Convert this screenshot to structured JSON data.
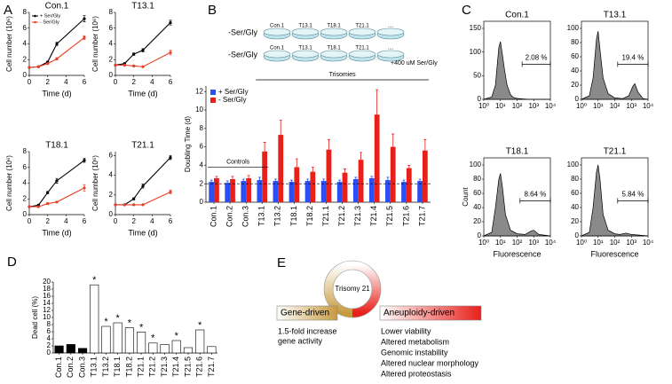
{
  "panel_labels": [
    "A",
    "B",
    "C",
    "D",
    "E"
  ],
  "schematic": {
    "rows": [
      "-Ser/Gly",
      "-Ser/Gly"
    ],
    "dishes": [
      "Con.1",
      "T13.1",
      "T18.1",
      "T21.1",
      "...."
    ],
    "note": "+400 uM Ser/Gly"
  },
  "diagram": {
    "center": "Trisomy 21",
    "left": {
      "title": "Gene-driven",
      "items": [
        "1.5-fold increase",
        "gene activity"
      ]
    },
    "right": {
      "title": "Aneuploidy-driven",
      "items": [
        "Lower viability",
        "Altered metabolism",
        "Genomic instability",
        "Altered nuclear morphology",
        "Altered proteostasis"
      ]
    }
  },
  "chart_data": [
    {
      "type": "line",
      "title": "Con.1",
      "x": [
        0,
        1,
        2,
        3,
        6
      ],
      "xlim": [
        0,
        6
      ],
      "xticks": [
        0,
        2,
        4,
        6
      ],
      "ylim": [
        0,
        8
      ],
      "yticks": [
        0,
        2,
        4,
        6,
        8
      ],
      "x_label": "Time (d)",
      "y_label": "Cell number (10⁶)",
      "legend": "upper left",
      "series": [
        {
          "name": "+ Ser/Gly",
          "color": "#000000",
          "values": [
            1,
            1.1,
            1.7,
            4.0,
            7.2
          ],
          "errors": [
            0.05,
            0.05,
            0.1,
            0.2,
            0.4
          ]
        },
        {
          "name": "- Ser/Gly",
          "color": "#e8402a",
          "values": [
            1,
            1.1,
            1.5,
            2.1,
            4.8
          ],
          "errors": [
            0.05,
            0.05,
            0.1,
            0.15,
            0.25
          ]
        }
      ]
    },
    {
      "type": "line",
      "title": "T13.1",
      "x": [
        0,
        1,
        2,
        3,
        6
      ],
      "xlim": [
        0,
        6
      ],
      "xticks": [
        0,
        2,
        4,
        6
      ],
      "ylim": [
        0,
        8
      ],
      "yticks": [
        0,
        2,
        4,
        6,
        8
      ],
      "x_label": "Time (d)",
      "y_label": "Cell number (10⁶)",
      "series": [
        {
          "name": "+ Ser/Gly",
          "color": "#000000",
          "values": [
            1.3,
            1.5,
            2.7,
            3.2,
            6.7
          ],
          "errors": [
            0.05,
            0.1,
            0.15,
            0.2,
            0.3
          ]
        },
        {
          "name": "- Ser/Gly",
          "color": "#e8402a",
          "values": [
            1.3,
            1.3,
            1.2,
            1.1,
            2.9
          ],
          "errors": [
            0.05,
            0.05,
            0.1,
            0.1,
            0.3
          ]
        }
      ]
    },
    {
      "type": "line",
      "title": "T18.1",
      "x": [
        0,
        1,
        2,
        3,
        6
      ],
      "xlim": [
        0,
        6
      ],
      "xticks": [
        0,
        2,
        4,
        6
      ],
      "ylim": [
        0,
        8
      ],
      "yticks": [
        0,
        2,
        4,
        6,
        8
      ],
      "x_label": "Time (d)",
      "y_label": "Cell number (10⁶)",
      "series": [
        {
          "name": "+ Ser/Gly",
          "color": "#000000",
          "values": [
            1.0,
            1.2,
            2.8,
            4.3,
            6.9
          ],
          "errors": [
            0.05,
            0.1,
            0.15,
            0.3,
            0.25
          ]
        },
        {
          "name": "- Ser/Gly",
          "color": "#e8402a",
          "values": [
            1.0,
            1.0,
            1.4,
            1.6,
            3.4
          ],
          "errors": [
            0.05,
            0.05,
            0.1,
            0.1,
            0.4
          ]
        }
      ]
    },
    {
      "type": "line",
      "title": "T21.1",
      "x": [
        0,
        1,
        2,
        3,
        6
      ],
      "xlim": [
        0,
        6
      ],
      "xticks": [
        0,
        2,
        4,
        6
      ],
      "ylim": [
        0,
        6.4
      ],
      "yticks": [
        0,
        2,
        4,
        6
      ],
      "x_label": "Time (d)",
      "y_label": "Cell number (10⁶)",
      "series": [
        {
          "name": "+ Ser/Gly",
          "color": "#000000",
          "values": [
            1.0,
            1.0,
            1.6,
            2.9,
            5.8
          ],
          "errors": [
            0.05,
            0.05,
            0.1,
            0.2,
            0.2
          ]
        },
        {
          "name": "- Ser/Gly",
          "color": "#e8402a",
          "values": [
            1.0,
            1.0,
            1.0,
            1.0,
            2.3
          ],
          "errors": [
            0.05,
            0.05,
            0.05,
            0.05,
            0.2
          ]
        }
      ]
    },
    {
      "type": "bar",
      "y_label": "Doubling Time (d)",
      "ylim": [
        0,
        12.6
      ],
      "yticks": [
        0,
        2,
        4,
        6,
        8,
        10,
        12
      ],
      "legend": "upper left",
      "reference_line": 2,
      "categories": [
        "Con.1",
        "Con.2",
        "Con.3",
        "T13.1",
        "T13.2",
        "T18.1",
        "T18.2",
        "T21.1",
        "T21.2",
        "T21.3",
        "T21.4",
        "T21.5",
        "T21.6",
        "T21.7"
      ],
      "series": [
        {
          "name": "+ Ser/Gly",
          "color": "#2b4ff0",
          "values": [
            2.2,
            2.1,
            2.3,
            2.4,
            2.3,
            2.2,
            2.3,
            2.3,
            2.2,
            2.5,
            2.6,
            2.4,
            2.2,
            2.3
          ],
          "errors": [
            0.2,
            0.2,
            0.2,
            0.3,
            0.2,
            0.2,
            0.2,
            0.2,
            0.2,
            0.2,
            0.2,
            0.3,
            0.2,
            0.2
          ]
        },
        {
          "name": "- Ser/Gly",
          "color": "#e8201a",
          "values": [
            2.6,
            2.5,
            2.6,
            5.5,
            7.3,
            3.8,
            3.3,
            5.7,
            3.2,
            4.6,
            9.5,
            6.0,
            3.7,
            5.6
          ],
          "errors": [
            0.2,
            0.3,
            0.3,
            1.0,
            1.6,
            0.9,
            0.5,
            1.1,
            0.4,
            0.8,
            2.7,
            1.4,
            0.3,
            1.2
          ]
        }
      ],
      "brackets": [
        {
          "label": "Controls",
          "from": 0,
          "to": 3
        },
        {
          "label": "Trisomies",
          "from": 3,
          "to": 13
        }
      ]
    },
    {
      "type": "area",
      "title": "Con.1",
      "color": "#8a8a8a",
      "log_x": true,
      "frame": true,
      "xlim": [
        1,
        10000
      ],
      "xticks": [
        {
          "value": 1,
          "label": "10⁰"
        },
        {
          "value": 10,
          "label": "10¹"
        },
        {
          "value": 100,
          "label": "10²"
        },
        {
          "value": 1000,
          "label": "10³"
        },
        {
          "value": 10000,
          "label": "10⁴"
        }
      ],
      "ylim": [
        0,
        165
      ],
      "yticks": [
        0,
        50,
        100,
        150
      ],
      "x": [
        1,
        3,
        5,
        8,
        10,
        13,
        18,
        25,
        40,
        60,
        100,
        200,
        500,
        1000,
        10000
      ],
      "values": [
        0,
        5,
        30,
        110,
        122,
        95,
        60,
        30,
        10,
        4,
        2,
        1,
        0,
        0,
        0
      ],
      "gate": [
        200,
        10000
      ],
      "gate_value": 2.08,
      "gate_label": "2.08 %"
    },
    {
      "type": "area",
      "title": "T13.1",
      "color": "#8a8a8a",
      "log_x": true,
      "frame": true,
      "xlim": [
        1,
        10000
      ],
      "xticks": [
        {
          "value": 1,
          "label": "10⁰"
        },
        {
          "value": 10,
          "label": "10¹"
        },
        {
          "value": 100,
          "label": "10²"
        },
        {
          "value": 1000,
          "label": "10³"
        },
        {
          "value": 10000,
          "label": "10⁴"
        }
      ],
      "ylim": [
        0,
        110
      ],
      "yticks": [
        0,
        20,
        40,
        60,
        80,
        100
      ],
      "x": [
        1,
        3,
        5,
        8,
        10,
        13,
        20,
        40,
        100,
        300,
        700,
        1200,
        1600,
        2500,
        5000,
        10000
      ],
      "values": [
        0,
        5,
        30,
        85,
        96,
        70,
        30,
        8,
        2,
        1,
        5,
        18,
        22,
        10,
        1,
        0
      ],
      "gate": [
        150,
        10000
      ],
      "gate_value": 19.4,
      "gate_label": "19.4 %"
    },
    {
      "type": "area",
      "title": "T18.1",
      "color": "#8a8a8a",
      "log_x": true,
      "frame": true,
      "xlim": [
        1,
        10000
      ],
      "x_label": "Fluorescence",
      "y_label": "Count",
      "xticks": [
        {
          "value": 1,
          "label": "10⁰"
        },
        {
          "value": 10,
          "label": "10¹"
        },
        {
          "value": 100,
          "label": "10²"
        },
        {
          "value": 1000,
          "label": "10³"
        },
        {
          "value": 10000,
          "label": "10⁴"
        }
      ],
      "ylim": [
        0,
        110
      ],
      "yticks": [
        0,
        20,
        40,
        60,
        80,
        100
      ],
      "x": [
        1,
        3,
        5,
        8,
        10,
        13,
        20,
        40,
        100,
        300,
        700,
        1000,
        2000,
        10000
      ],
      "values": [
        0,
        5,
        40,
        80,
        88,
        70,
        30,
        8,
        3,
        2,
        7,
        8,
        2,
        0
      ],
      "gate": [
        150,
        10000
      ],
      "gate_value": 8.64,
      "gate_label": "8.64 %"
    },
    {
      "type": "area",
      "title": "T21.1",
      "color": "#8a8a8a",
      "log_x": true,
      "frame": true,
      "xlim": [
        1,
        10000
      ],
      "x_label": "Fluorescence",
      "xticks": [
        {
          "value": 1,
          "label": "10⁰"
        },
        {
          "value": 10,
          "label": "10¹"
        },
        {
          "value": 100,
          "label": "10²"
        },
        {
          "value": 1000,
          "label": "10³"
        },
        {
          "value": 10000,
          "label": "10⁴"
        }
      ],
      "ylim": [
        0,
        110
      ],
      "yticks": [
        0,
        20,
        40,
        60,
        80,
        100
      ],
      "x": [
        1,
        3,
        5,
        8,
        10,
        13,
        20,
        40,
        100,
        200,
        500,
        1000,
        10000
      ],
      "values": [
        0,
        5,
        40,
        90,
        100,
        80,
        30,
        8,
        3,
        2,
        4,
        2,
        0
      ],
      "gate": [
        150,
        10000
      ],
      "gate_value": 5.84,
      "gate_label": "5.84 %"
    },
    {
      "type": "bar",
      "y_label": "Dead cell (%)",
      "ylim": [
        0,
        20
      ],
      "yticks": [
        0,
        2,
        4,
        6,
        8,
        10,
        12,
        14,
        16,
        18,
        20
      ],
      "edge_color": "#000000",
      "categories": [
        "Con.1",
        "Con.2",
        "Con.3",
        "T13.1",
        "T13.2",
        "T18.1",
        "T18.2",
        "T21.1",
        "T21.2",
        "T21.3",
        "T21.4",
        "T21.5",
        "T21.6",
        "T21.7"
      ],
      "values": [
        2.0,
        2.4,
        1.3,
        19.2,
        7.5,
        8.5,
        7.1,
        5.9,
        2.8,
        2.4,
        3.5,
        1.5,
        6.5,
        1.8
      ],
      "colors": [
        "#000000",
        "#000000",
        "#000000",
        "#ffffff",
        "#ffffff",
        "#ffffff",
        "#ffffff",
        "#ffffff",
        "#ffffff",
        "#ffffff",
        "#ffffff",
        "#ffffff",
        "#ffffff",
        "#ffffff"
      ],
      "significant": [
        false,
        false,
        false,
        true,
        true,
        true,
        true,
        true,
        true,
        false,
        true,
        false,
        true,
        false
      ],
      "significance_label": "*"
    }
  ]
}
